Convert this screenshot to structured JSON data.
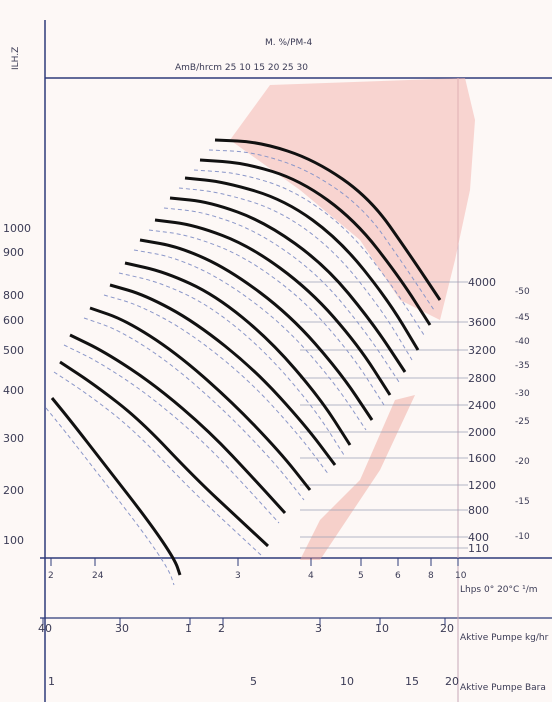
{
  "chart_data": {
    "type": "line",
    "title": "",
    "top_text": {
      "label_a": "M. %/PM-4",
      "label_b": "AmB/hrcm 25 10 15 20 25 30"
    },
    "left_axis": {
      "corner_label": "ILH.Z",
      "ticks": [
        {
          "label": "1000",
          "value": 1000
        },
        {
          "label": "900",
          "value": 900
        },
        {
          "label": "800",
          "value": 800
        },
        {
          "label": "600",
          "value": 600
        },
        {
          "label": "500",
          "value": 500
        },
        {
          "label": "400",
          "value": 400
        },
        {
          "label": "300",
          "value": 300
        },
        {
          "label": "200",
          "value": 200
        },
        {
          "label": "100",
          "value": 100
        }
      ]
    },
    "right_labels": [
      {
        "label": "4000",
        "value": 4000
      },
      {
        "label": "3600",
        "value": 3600
      },
      {
        "label": "3200",
        "value": 3200
      },
      {
        "label": "2800",
        "value": 2800
      },
      {
        "label": "2400",
        "value": 2400
      },
      {
        "label": "2000",
        "value": 2000
      },
      {
        "label": "1600",
        "value": 1600
      },
      {
        "label": "1200",
        "value": 1200
      },
      {
        "label": "800",
        "value": 800
      },
      {
        "label": "400",
        "value": 400
      },
      {
        "label": "110",
        "value": 110
      }
    ],
    "far_right_labels": [
      "-50",
      "-45",
      "-40",
      "-35",
      "-30",
      "-25",
      "-20",
      "-15",
      "-10"
    ],
    "bottom_axes": [
      {
        "ticks": [
          "2",
          "24",
          "3",
          "4",
          "5",
          "6",
          "8",
          "10"
        ],
        "label": "Lhps 0° 20°C ¹/m"
      },
      {
        "ticks": [
          "40",
          "30",
          "1",
          "2",
          "3",
          "10",
          "20"
        ],
        "label": "Aktive Pumpe kg/hr"
      },
      {
        "ticks": [
          "1",
          "5",
          "10",
          "15",
          "20"
        ],
        "label": "Aktive Pumpe Bara"
      }
    ],
    "series": [
      {
        "points": [
          [
            52,
            398
          ],
          [
            70,
            420
          ],
          [
            105,
            465
          ],
          [
            150,
            523
          ],
          [
            175,
            560
          ],
          [
            180,
            575
          ]
        ]
      },
      {
        "points": [
          [
            60,
            362
          ],
          [
            95,
            385
          ],
          [
            140,
            420
          ],
          [
            195,
            478
          ],
          [
            240,
            520
          ],
          [
            268,
            546
          ]
        ]
      },
      {
        "points": [
          [
            70,
            335
          ],
          [
            105,
            352
          ],
          [
            155,
            385
          ],
          [
            210,
            432
          ],
          [
            255,
            480
          ],
          [
            285,
            513
          ]
        ]
      },
      {
        "points": [
          [
            90,
            308
          ],
          [
            125,
            320
          ],
          [
            175,
            352
          ],
          [
            230,
            400
          ],
          [
            280,
            452
          ],
          [
            310,
            490
          ]
        ]
      },
      {
        "points": [
          [
            110,
            285
          ],
          [
            145,
            295
          ],
          [
            195,
            322
          ],
          [
            255,
            370
          ],
          [
            305,
            425
          ],
          [
            335,
            465
          ]
        ]
      },
      {
        "points": [
          [
            125,
            263
          ],
          [
            165,
            272
          ],
          [
            215,
            295
          ],
          [
            270,
            340
          ],
          [
            320,
            398
          ],
          [
            350,
            445
          ]
        ]
      },
      {
        "points": [
          [
            140,
            240
          ],
          [
            180,
            247
          ],
          [
            230,
            270
          ],
          [
            290,
            315
          ],
          [
            340,
            372
          ],
          [
            372,
            420
          ]
        ]
      },
      {
        "points": [
          [
            155,
            220
          ],
          [
            195,
            225
          ],
          [
            250,
            246
          ],
          [
            310,
            290
          ],
          [
            358,
            345
          ],
          [
            390,
            395
          ]
        ]
      },
      {
        "points": [
          [
            170,
            198
          ],
          [
            210,
            202
          ],
          [
            265,
            222
          ],
          [
            325,
            265
          ],
          [
            372,
            322
          ],
          [
            405,
            372
          ]
        ]
      },
      {
        "points": [
          [
            185,
            178
          ],
          [
            225,
            182
          ],
          [
            285,
            200
          ],
          [
            340,
            240
          ],
          [
            388,
            300
          ],
          [
            418,
            350
          ]
        ]
      },
      {
        "points": [
          [
            200,
            160
          ],
          [
            245,
            163
          ],
          [
            300,
            180
          ],
          [
            355,
            220
          ],
          [
            400,
            278
          ],
          [
            430,
            325
          ]
        ]
      },
      {
        "points": [
          [
            215,
            140
          ],
          [
            260,
            142
          ],
          [
            315,
            160
          ],
          [
            370,
            198
          ],
          [
            410,
            255
          ],
          [
            440,
            300
          ]
        ]
      }
    ],
    "grid": true
  }
}
